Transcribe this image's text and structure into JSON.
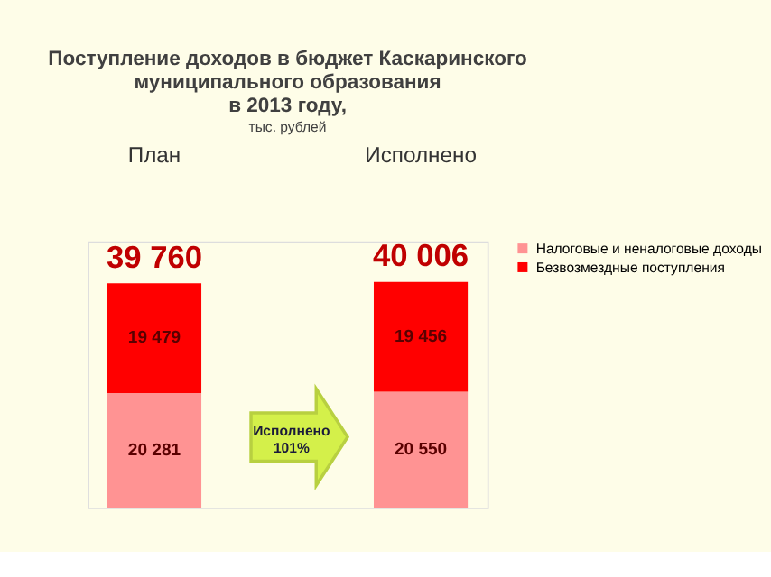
{
  "chart_data": {
    "type": "bar",
    "stacked": true,
    "title": [
      "Поступление доходов в бюджет Каскаринского",
      "муниципального образования",
      "в 2013 году,"
    ],
    "subtitle": "тыс. рублей",
    "categories": [
      "План",
      "Исполнено"
    ],
    "series": [
      {
        "name": "Налоговые и неналоговые доходы",
        "color": "#ff9393",
        "values": [
          20281,
          20550
        ],
        "value_labels": [
          "20 281",
          "20 550"
        ]
      },
      {
        "name": "Безвозмездные поступления",
        "color": "#ff0000",
        "values": [
          19479,
          19456
        ],
        "value_labels": [
          "19 479",
          "19 456"
        ]
      }
    ],
    "totals": [
      "39 760",
      "40 006"
    ],
    "annotations": [
      "Исполнено\n101%"
    ],
    "legend": "right",
    "grid": false
  }
}
